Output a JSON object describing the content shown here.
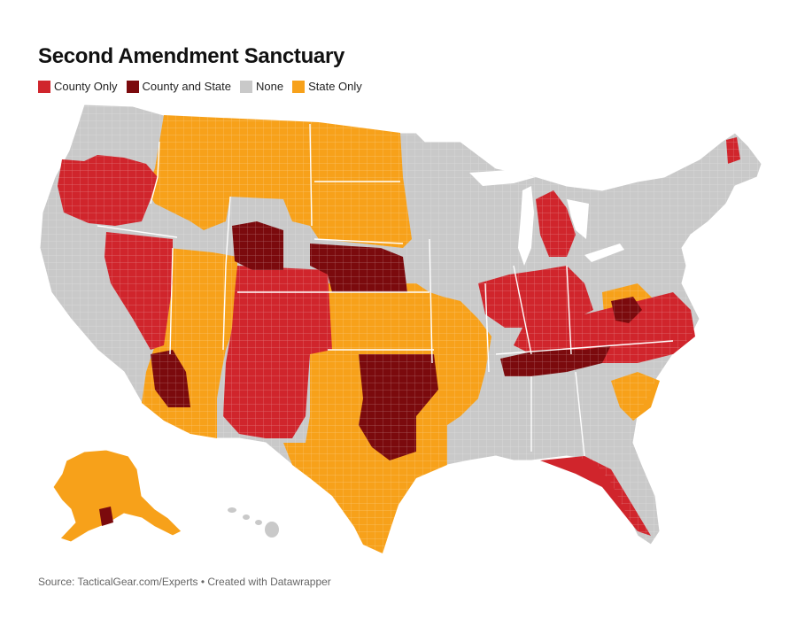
{
  "header": {
    "title": "Second Amendment Sanctuary"
  },
  "legend": {
    "items": [
      {
        "label": "County Only",
        "color": "#d0252c"
      },
      {
        "label": "County and State",
        "color": "#7b0a0d"
      },
      {
        "label": "None",
        "color": "#c9c9c9"
      },
      {
        "label": "State Only",
        "color": "#f7a11a"
      }
    ]
  },
  "footer": {
    "source": "Source: TacticalGear.com/Experts • Created with Datawrapper"
  }
}
